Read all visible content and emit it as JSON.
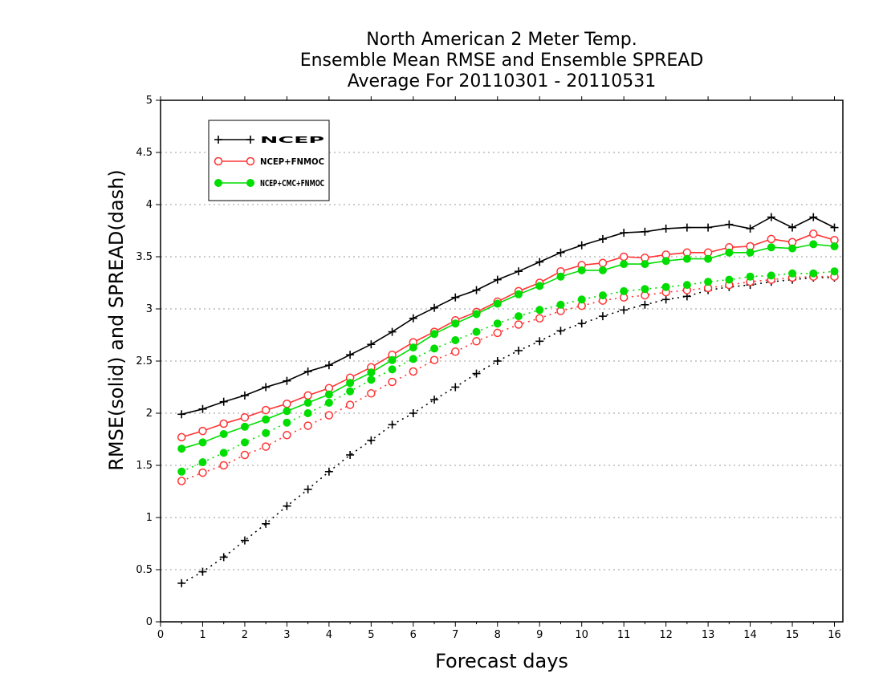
{
  "chart_data": {
    "type": "line",
    "title": [
      "North American 2 Meter Temp.",
      "Ensemble Mean RMSE and Ensemble SPREAD",
      "Average For 20110301 - 20110531"
    ],
    "xlabel": "Forecast days",
    "ylabel": "RMSE(solid) and SPREAD(dash)",
    "xlim": [
      0,
      16.2
    ],
    "ylim": [
      0,
      5
    ],
    "xticks": [
      "0",
      "1",
      "2",
      "3",
      "4",
      "5",
      "6",
      "7",
      "8",
      "9",
      "10",
      "11",
      "12",
      "13",
      "14",
      "15",
      "16"
    ],
    "yticks": [
      "0",
      "0.5",
      "1",
      "1.5",
      "2",
      "2.5",
      "3",
      "3.5",
      "4",
      "4.5",
      "5"
    ],
    "grid": true,
    "legend_position": "top-left",
    "x": [
      0.5,
      1,
      1.5,
      2,
      2.5,
      3,
      3.5,
      4,
      4.5,
      5,
      5.5,
      6,
      6.5,
      7,
      7.5,
      8,
      8.5,
      9,
      9.5,
      10,
      10.5,
      11,
      11.5,
      12,
      12.5,
      13,
      13.5,
      14,
      14.5,
      15,
      15.5,
      16
    ],
    "series": [
      {
        "name": "NCEP",
        "color": "#000000",
        "marker": "plus",
        "rmse": [
          1.99,
          2.04,
          2.11,
          2.17,
          2.25,
          2.31,
          2.4,
          2.46,
          2.56,
          2.66,
          2.78,
          2.91,
          3.01,
          3.11,
          3.18,
          3.28,
          3.36,
          3.45,
          3.54,
          3.61,
          3.67,
          3.73,
          3.74,
          3.77,
          3.78,
          3.78,
          3.81,
          3.77,
          3.88,
          3.78,
          3.88,
          3.78
        ],
        "spread": [
          0.37,
          0.48,
          0.62,
          0.78,
          0.94,
          1.11,
          1.27,
          1.44,
          1.6,
          1.74,
          1.89,
          2.0,
          2.13,
          2.25,
          2.38,
          2.5,
          2.6,
          2.69,
          2.79,
          2.86,
          2.93,
          2.99,
          3.04,
          3.09,
          3.12,
          3.18,
          3.21,
          3.23,
          3.26,
          3.28,
          3.3,
          3.3
        ]
      },
      {
        "name": "NCEP+FNMOC",
        "color": "#ff3333",
        "marker": "open-circle",
        "rmse": [
          1.77,
          1.83,
          1.9,
          1.96,
          2.03,
          2.09,
          2.17,
          2.24,
          2.34,
          2.44,
          2.56,
          2.68,
          2.78,
          2.89,
          2.97,
          3.07,
          3.17,
          3.25,
          3.36,
          3.42,
          3.44,
          3.5,
          3.49,
          3.52,
          3.54,
          3.54,
          3.59,
          3.6,
          3.67,
          3.64,
          3.72,
          3.66
        ],
        "spread": [
          1.35,
          1.43,
          1.5,
          1.6,
          1.68,
          1.79,
          1.88,
          1.98,
          2.08,
          2.19,
          2.3,
          2.4,
          2.51,
          2.59,
          2.69,
          2.77,
          2.85,
          2.91,
          2.98,
          3.03,
          3.08,
          3.11,
          3.13,
          3.16,
          3.18,
          3.2,
          3.23,
          3.26,
          3.28,
          3.3,
          3.31,
          3.31
        ]
      },
      {
        "name": "NCEP+CMC+FNMOC",
        "color": "#00dd00",
        "marker": "filled-circle",
        "rmse": [
          1.66,
          1.72,
          1.8,
          1.87,
          1.94,
          2.02,
          2.1,
          2.18,
          2.29,
          2.39,
          2.51,
          2.63,
          2.76,
          2.86,
          2.95,
          3.05,
          3.14,
          3.22,
          3.31,
          3.37,
          3.37,
          3.43,
          3.43,
          3.46,
          3.48,
          3.48,
          3.54,
          3.54,
          3.59,
          3.58,
          3.62,
          3.6
        ],
        "spread": [
          1.44,
          1.53,
          1.62,
          1.72,
          1.81,
          1.91,
          2.0,
          2.1,
          2.21,
          2.32,
          2.42,
          2.52,
          2.62,
          2.7,
          2.78,
          2.86,
          2.93,
          2.99,
          3.04,
          3.09,
          3.13,
          3.17,
          3.19,
          3.21,
          3.23,
          3.26,
          3.28,
          3.31,
          3.32,
          3.34,
          3.34,
          3.36
        ]
      }
    ]
  }
}
